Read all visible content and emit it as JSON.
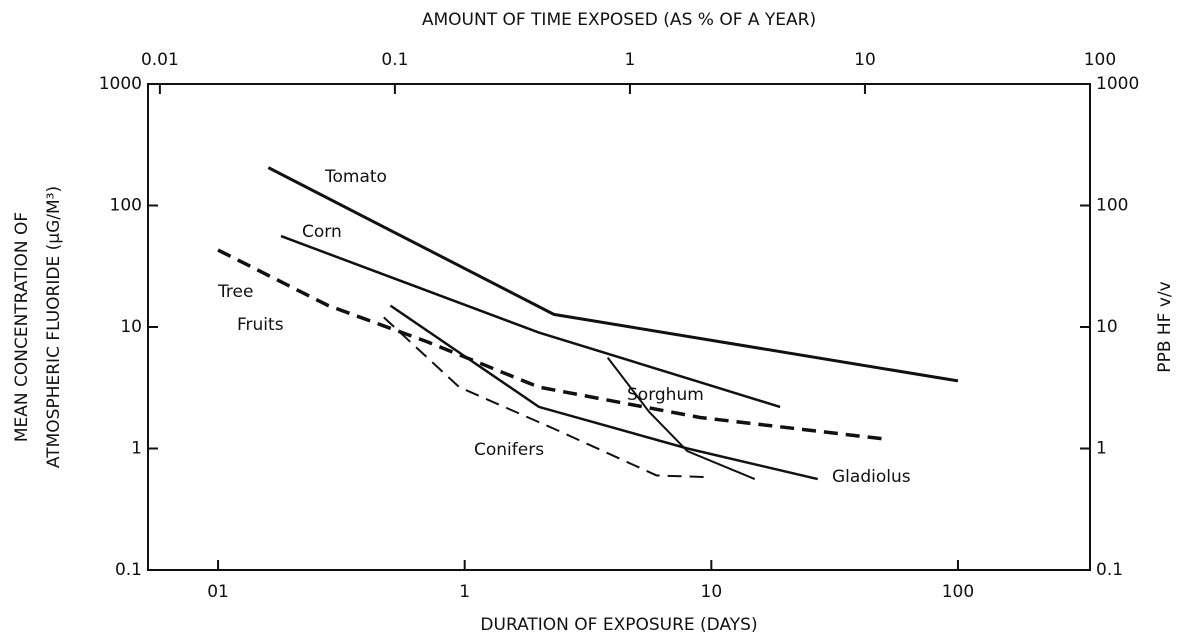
{
  "chart_data": {
    "type": "line",
    "log_x": true,
    "log_y": true,
    "xlabel": "DURATION OF EXPOSURE (DAYS)",
    "x2label": "AMOUNT OF TIME EXPOSED (AS % OF A YEAR)",
    "ylabel": [
      "MEAN CONCENTRATION OF",
      "ATMOSPHERIC FLUORIDE (µG/M³)"
    ],
    "y2label": "PPB HF v/v",
    "xlim": [
      0.052,
      343
    ],
    "xticks": [
      {
        "value": 0.1,
        "label": "01"
      },
      1,
      10,
      100
    ],
    "x2lim": [
      0.0089,
      90.7
    ],
    "x2ticks": [
      0.01,
      0.1,
      1,
      10,
      100
    ],
    "ylim": [
      0.1,
      1000
    ],
    "yticks": [
      0.1,
      1,
      10,
      100,
      1000
    ],
    "y2lim": [
      0.1,
      1000
    ],
    "y2ticks": [
      0.1,
      1,
      10,
      100,
      1000
    ],
    "series": [
      {
        "name": "Tomato",
        "color": "#111",
        "dash": false,
        "width": 3,
        "x": [
          0.16,
          2.3,
          100
        ],
        "values": [
          205,
          12.7,
          3.6
        ]
      },
      {
        "name": "Corn",
        "color": "#111",
        "dash": false,
        "width": 2.5,
        "x": [
          0.18,
          2,
          19
        ],
        "values": [
          56,
          9,
          2.2
        ]
      },
      {
        "name": [
          "Tree",
          "Fruits"
        ],
        "color": "#111",
        "dash": true,
        "width": 3.5,
        "x": [
          0.1,
          0.28,
          0.7,
          2,
          9,
          50
        ],
        "values": [
          43,
          15,
          7.6,
          3.2,
          1.8,
          1.2
        ]
      },
      {
        "name": "Sorghum",
        "color": "#111",
        "dash": false,
        "width": 2,
        "x": [
          3.8,
          5.6,
          8,
          15
        ],
        "values": [
          5.6,
          2.0,
          0.95,
          0.56
        ]
      },
      {
        "name": "Conifers",
        "color": "#111",
        "dash": true,
        "width": 2,
        "x": [
          0.47,
          0.95,
          2.4,
          6,
          10
        ],
        "values": [
          12,
          3.2,
          1.4,
          0.6,
          0.58
        ]
      },
      {
        "name": "Gladiolus",
        "color": "#111",
        "dash": false,
        "width": 2.5,
        "x": [
          0.5,
          2,
          8,
          27
        ],
        "values": [
          15,
          2.2,
          1.0,
          0.56
        ]
      }
    ]
  }
}
